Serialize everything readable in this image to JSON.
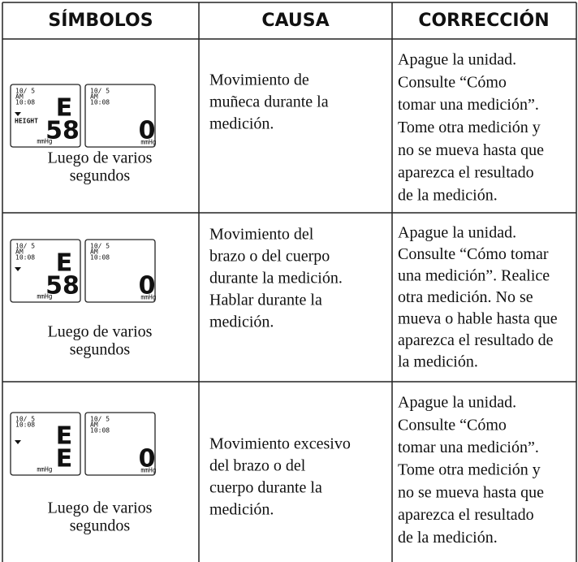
{
  "header": {
    "columns": [
      "SÍMBOLOS",
      "CAUSA",
      "CORRECCIÓN"
    ]
  },
  "rows": [
    {
      "screens": [
        {
          "date": "10/ 5",
          "ampm": "AM",
          "time": "10:08",
          "mode": "HEIGHT",
          "big": [
            "E",
            "58"
          ],
          "unit": "mmHg"
        },
        {
          "date": "10/ 5",
          "ampm": "AM",
          "time": "10:08",
          "big": [
            "0"
          ],
          "unit": "mmHg"
        }
      ],
      "caption": [
        "Luego de varios",
        "segundos"
      ],
      "cause": [
        "Movimiento de",
        "muñeca durante la",
        "medición."
      ],
      "correction": [
        "Apague la unidad.",
        "Consulte “Cómo",
        "tomar una medición”.",
        "Tome otra medición y",
        "no se mueva hasta que",
        "aparezca el resultado",
        "de la medición."
      ]
    },
    {
      "screens": [
        {
          "date": "10/ 5",
          "ampm": "AM",
          "time": "10:08",
          "big": [
            "E",
            "58"
          ],
          "unit": "mmHg"
        },
        {
          "date": "10/ 5",
          "ampm": "AM",
          "time": "10:08",
          "big": [
            "0"
          ],
          "unit": "mmHg"
        }
      ],
      "caption": [
        "Luego de varios",
        "segundos"
      ],
      "cause": [
        "Movimiento del",
        "brazo o del cuerpo",
        "durante la medición.",
        "Hablar durante la",
        "medición."
      ],
      "correction": [
        "Apague la unidad.",
        "Consulte “Cómo tomar",
        "una medición”. Realice",
        "otra medición. No se",
        "mueva o hable hasta que",
        "aparezca el resultado de",
        "la medición."
      ]
    },
    {
      "screens": [
        {
          "date": "10/ 5",
          "time": "10:08",
          "big": [
            "E",
            "E"
          ],
          "unit": "mmHg"
        },
        {
          "date": "10/ 5",
          "ampm": "AM",
          "time": "10:08",
          "big": [
            "0"
          ],
          "unit": "mmHg"
        }
      ],
      "caption": [
        "Luego de varios",
        "segundos"
      ],
      "cause": [
        "Movimiento excesivo",
        "del brazo o del",
        "cuerpo durante la",
        "medición."
      ],
      "correction": [
        "Apague la unidad.",
        "Consulte “Cómo",
        "tomar una medición”.",
        "Tome otra medición y",
        "no se mueva hasta que",
        "aparezca el resultado",
        "de la medición."
      ]
    }
  ]
}
